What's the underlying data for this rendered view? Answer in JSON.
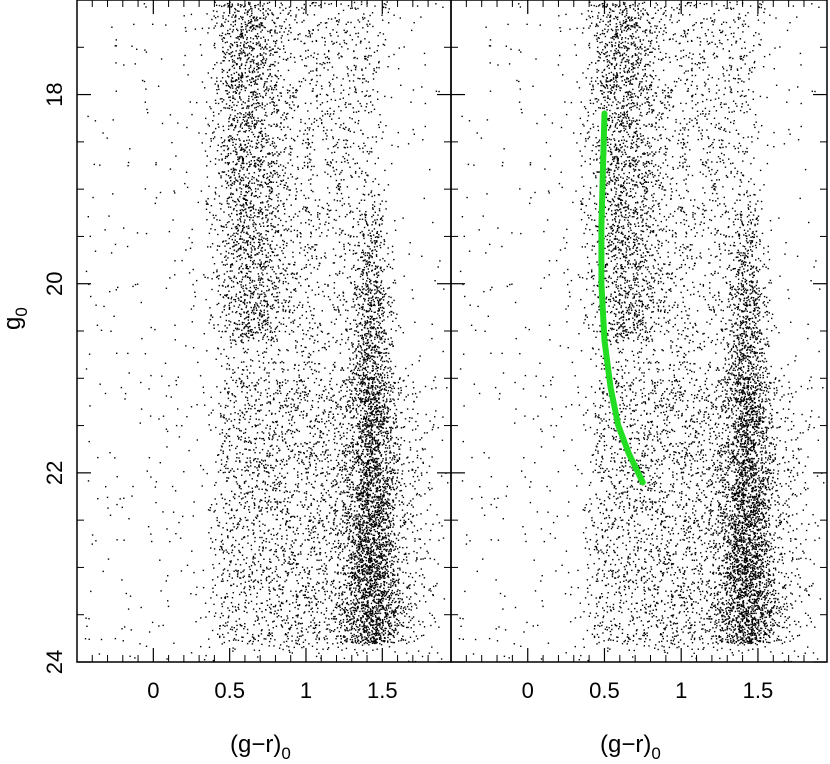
{
  "chart_data": [
    {
      "type": "scatter",
      "panel": "left",
      "xlabel": "(g−r)",
      "xlabel_sub": "0",
      "ylabel": "g",
      "ylabel_sub": "0",
      "xlim": [
        -0.5,
        1.95
      ],
      "ylim": [
        24,
        17.0
      ],
      "y_inverted": true,
      "xticks": [
        {
          "value": 0,
          "label": "0"
        },
        {
          "value": 0.5,
          "label": "0.5"
        },
        {
          "value": 1,
          "label": "1"
        },
        {
          "value": 1.5,
          "label": "1.5"
        }
      ],
      "yticks": [
        {
          "value": 18,
          "label": "18"
        },
        {
          "value": 20,
          "label": "20"
        },
        {
          "value": 22,
          "label": "22"
        },
        {
          "value": 24,
          "label": "24"
        }
      ],
      "point_color": "#000000",
      "grid": false,
      "features": [
        {
          "name": "red giant branch / faint red sequence",
          "x_center": 1.42,
          "y_range": [
            19.0,
            23.8
          ]
        },
        {
          "name": "blue main-sequence turnoff sequence",
          "x_center": 0.55,
          "y_range": [
            17.0,
            23.5
          ]
        }
      ]
    },
    {
      "type": "scatter",
      "panel": "right",
      "xlabel": "(g−r)",
      "xlabel_sub": "0",
      "xlim": [
        -0.5,
        1.95
      ],
      "ylim": [
        24,
        17.0
      ],
      "y_inverted": true,
      "xticks": [
        {
          "value": 0,
          "label": "0"
        },
        {
          "value": 0.5,
          "label": "0.5"
        },
        {
          "value": 1,
          "label": "1"
        },
        {
          "value": 1.5,
          "label": "1.5"
        }
      ],
      "point_color": "#000000",
      "grid": false,
      "overlay_line": {
        "color": "#22dd22",
        "points": [
          {
            "x": 0.5,
            "y": 18.2
          },
          {
            "x": 0.49,
            "y": 18.8
          },
          {
            "x": 0.48,
            "y": 19.4
          },
          {
            "x": 0.48,
            "y": 20.0
          },
          {
            "x": 0.5,
            "y": 20.6
          },
          {
            "x": 0.54,
            "y": 21.1
          },
          {
            "x": 0.59,
            "y": 21.5
          },
          {
            "x": 0.66,
            "y": 21.8
          },
          {
            "x": 0.75,
            "y": 22.1
          }
        ]
      }
    }
  ]
}
